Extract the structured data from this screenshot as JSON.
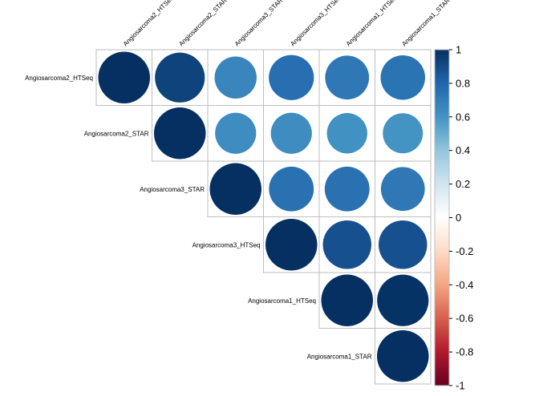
{
  "chart_data": {
    "type": "heatmap",
    "variant": "correlation-circles-upper",
    "labels": [
      "Angiosarcoma2_HTSeq",
      "Angiosarcoma2_STAR",
      "Angiosarcoma3_STAR",
      "Angiosarcoma3_HTSeq",
      "Angiosarcoma1_HTSeq",
      "Angiosarcoma1_STAR"
    ],
    "matrix": [
      [
        1.0,
        0.93,
        0.66,
        0.76,
        0.72,
        0.74
      ],
      [
        null,
        1.0,
        0.63,
        0.63,
        0.61,
        0.6
      ],
      [
        null,
        null,
        1.0,
        0.75,
        0.75,
        0.72
      ],
      [
        null,
        null,
        null,
        1.0,
        0.88,
        0.88
      ],
      [
        null,
        null,
        null,
        null,
        1.0,
        0.99
      ],
      [
        null,
        null,
        null,
        null,
        null,
        1.0
      ]
    ],
    "colorbar": {
      "range": [
        -1,
        1
      ],
      "ticks": [
        "1",
        "0.8",
        "0.6",
        "0.4",
        "0.2",
        "0",
        "-0.2",
        "-0.4",
        "-0.6",
        "-0.8",
        "-1"
      ],
      "colors": [
        "#67001F",
        "#B2182B",
        "#D6604D",
        "#F4A582",
        "#FDDBC7",
        "#FFFFFF",
        "#D1E5F0",
        "#92C5DE",
        "#4393C3",
        "#2166AC",
        "#053061"
      ]
    },
    "grid": true
  }
}
